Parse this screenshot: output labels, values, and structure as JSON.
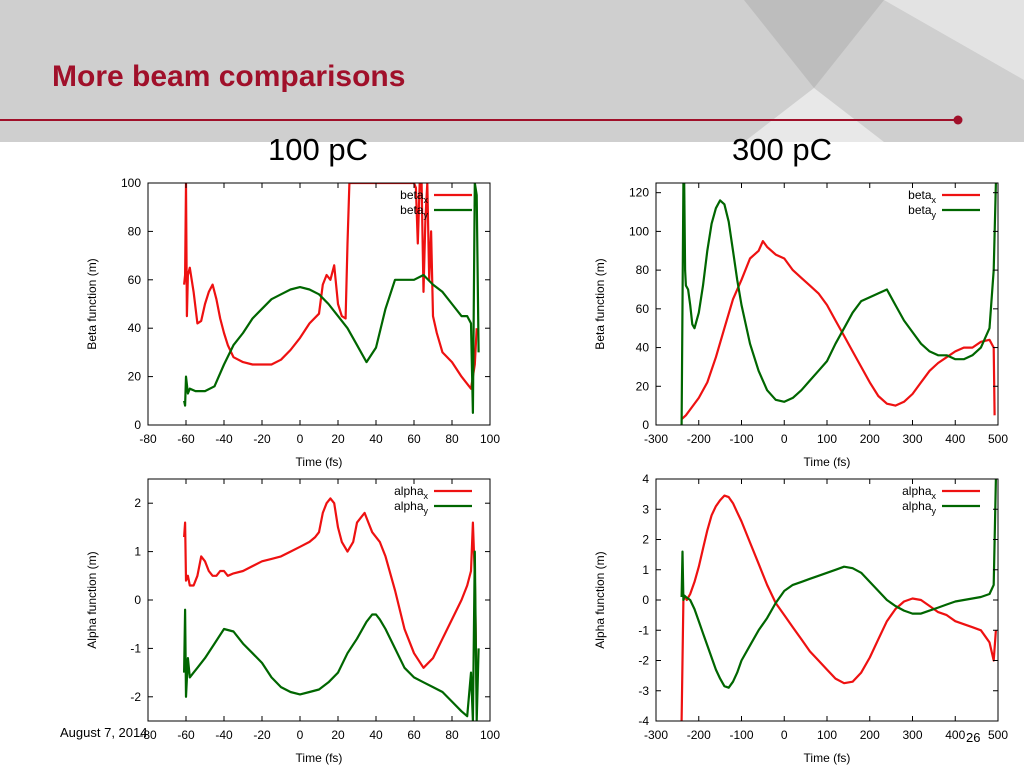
{
  "slide": {
    "title": "More beam comparisons",
    "column_titles": [
      "100 pC",
      "300 pC"
    ],
    "footer_date": "August 7, 2014",
    "page_number": "26"
  },
  "colors": {
    "title": "#a0102a",
    "header_band": "#cfcfcf",
    "series_x": "#ee1111",
    "series_y": "#006600"
  },
  "chart_data": [
    {
      "type": "line",
      "ylabel": "Beta function (m)",
      "xlabel": "Time (fs)",
      "xlim": [
        -80,
        100
      ],
      "ylim": [
        0,
        100
      ],
      "xticks": [
        -80,
        -60,
        -40,
        -20,
        0,
        20,
        40,
        60,
        80,
        100
      ],
      "yticks": [
        0,
        20,
        40,
        60,
        80,
        100
      ],
      "legend_position": "top-right",
      "series": [
        {
          "name": "beta",
          "sub": "x",
          "color": "#ee1111",
          "x": [
            -61,
            -60.5,
            -60,
            -59.5,
            -59,
            -58,
            -56,
            -54,
            -52,
            -50,
            -48,
            -46,
            -44,
            -42,
            -40,
            -38,
            -35,
            -30,
            -25,
            -20,
            -15,
            -10,
            -5,
            0,
            5,
            10,
            12,
            14,
            16,
            18,
            20,
            22,
            24,
            25,
            26,
            27,
            28,
            29,
            30,
            35,
            40,
            45,
            50,
            55,
            60,
            61,
            62,
            63,
            64,
            65,
            66,
            67,
            68,
            69,
            70,
            72,
            75,
            80,
            85,
            90,
            92,
            93
          ],
          "y": [
            58,
            62,
            100,
            45,
            62,
            65,
            55,
            42,
            43,
            50,
            55,
            58,
            52,
            44,
            38,
            33,
            28,
            26,
            25,
            25,
            25,
            27,
            31,
            36,
            42,
            46,
            58,
            62,
            60,
            66,
            50,
            45,
            44,
            75,
            100,
            100,
            100,
            100,
            100,
            100,
            100,
            100,
            100,
            100,
            100,
            98,
            75,
            100,
            100,
            55,
            85,
            100,
            60,
            80,
            45,
            38,
            30,
            26,
            20,
            15,
            25,
            40
          ]
        },
        {
          "name": "beta",
          "sub": "y",
          "color": "#006600",
          "x": [
            -61,
            -60.5,
            -60,
            -59,
            -58,
            -55,
            -50,
            -45,
            -40,
            -35,
            -30,
            -25,
            -20,
            -15,
            -10,
            -5,
            0,
            5,
            10,
            15,
            20,
            25,
            30,
            35,
            40,
            45,
            50,
            55,
            60,
            65,
            70,
            75,
            80,
            85,
            88,
            90,
            91,
            92,
            93,
            94
          ],
          "y": [
            10,
            8,
            20,
            13,
            15,
            14,
            14,
            16,
            25,
            33,
            38,
            44,
            48,
            52,
            54,
            56,
            57,
            56,
            54,
            50,
            45,
            40,
            33,
            26,
            32,
            48,
            60,
            60,
            60,
            62,
            58,
            55,
            50,
            45,
            45,
            42,
            5,
            100,
            95,
            30
          ]
        }
      ]
    },
    {
      "type": "line",
      "ylabel": "Beta function (m)",
      "xlabel": "Time (fs)",
      "xlim": [
        -300,
        500
      ],
      "ylim": [
        0,
        125
      ],
      "xticks": [
        -300,
        -200,
        -100,
        0,
        100,
        200,
        300,
        400,
        500
      ],
      "yticks": [
        0,
        20,
        40,
        60,
        80,
        100,
        120
      ],
      "legend_position": "top-right",
      "series": [
        {
          "name": "beta",
          "sub": "x",
          "color": "#ee1111",
          "x": [
            -240,
            -230,
            -220,
            -200,
            -180,
            -160,
            -140,
            -120,
            -100,
            -80,
            -60,
            -50,
            -40,
            -20,
            0,
            20,
            40,
            60,
            80,
            100,
            120,
            140,
            160,
            180,
            200,
            220,
            240,
            260,
            280,
            300,
            320,
            340,
            360,
            380,
            400,
            420,
            440,
            460,
            480,
            490,
            492
          ],
          "y": [
            3,
            5,
            8,
            14,
            22,
            35,
            50,
            65,
            75,
            86,
            90,
            95,
            92,
            88,
            86,
            80,
            76,
            72,
            68,
            62,
            54,
            46,
            38,
            30,
            22,
            15,
            11,
            10,
            12,
            16,
            22,
            28,
            32,
            35,
            38,
            40,
            40,
            43,
            44,
            40,
            5
          ]
        },
        {
          "name": "beta",
          "sub": "y",
          "color": "#006600",
          "x": [
            -240,
            -236,
            -234,
            -232,
            -230,
            -225,
            -220,
            -215,
            -210,
            -200,
            -190,
            -180,
            -170,
            -160,
            -150,
            -140,
            -130,
            -120,
            -110,
            -100,
            -80,
            -60,
            -40,
            -20,
            0,
            20,
            40,
            60,
            80,
            100,
            120,
            140,
            160,
            180,
            200,
            220,
            240,
            260,
            280,
            300,
            320,
            340,
            360,
            380,
            400,
            420,
            440,
            460,
            480,
            490,
            495
          ],
          "y": [
            0,
            125,
            125,
            80,
            72,
            70,
            62,
            52,
            50,
            58,
            72,
            90,
            104,
            112,
            116,
            114,
            105,
            90,
            75,
            62,
            42,
            28,
            18,
            13,
            12,
            14,
            18,
            23,
            28,
            33,
            42,
            50,
            58,
            64,
            66,
            68,
            70,
            62,
            54,
            48,
            42,
            38,
            36,
            36,
            34,
            34,
            36,
            40,
            50,
            80,
            125
          ]
        }
      ]
    },
    {
      "type": "line",
      "ylabel": "Alpha function (m)",
      "xlabel": "Time (fs)",
      "xlim": [
        -80,
        100
      ],
      "ylim": [
        -2.5,
        2.5
      ],
      "xticks": [
        -80,
        -60,
        -40,
        -20,
        0,
        20,
        40,
        60,
        80,
        100
      ],
      "yticks": [
        -2,
        -1,
        0,
        1,
        2
      ],
      "legend_position": "top-right",
      "series": [
        {
          "name": "alpha",
          "sub": "x",
          "color": "#ee1111",
          "x": [
            -61,
            -60.5,
            -60,
            -59,
            -58,
            -56,
            -54,
            -52,
            -50,
            -48,
            -46,
            -44,
            -42,
            -40,
            -38,
            -35,
            -30,
            -25,
            -20,
            -15,
            -10,
            -5,
            0,
            5,
            8,
            10,
            12,
            14,
            16,
            18,
            20,
            22,
            25,
            28,
            30,
            32,
            34,
            36,
            38,
            40,
            42,
            45,
            50,
            55,
            60,
            65,
            70,
            75,
            80,
            85,
            88,
            90,
            91,
            92,
            93
          ],
          "y": [
            1.3,
            1.6,
            0.4,
            0.5,
            0.3,
            0.3,
            0.5,
            0.9,
            0.8,
            0.6,
            0.5,
            0.5,
            0.6,
            0.6,
            0.5,
            0.55,
            0.6,
            0.7,
            0.8,
            0.85,
            0.9,
            1.0,
            1.1,
            1.2,
            1.3,
            1.4,
            1.8,
            2.0,
            2.1,
            2.0,
            1.5,
            1.2,
            1.0,
            1.2,
            1.6,
            1.7,
            1.8,
            1.6,
            1.4,
            1.3,
            1.2,
            0.9,
            0.2,
            -0.6,
            -1.1,
            -1.4,
            -1.2,
            -0.8,
            -0.4,
            0.0,
            0.3,
            0.6,
            1.6,
            0.5,
            -2.0
          ]
        },
        {
          "name": "alpha",
          "sub": "y",
          "color": "#006600",
          "x": [
            -61,
            -60.5,
            -60,
            -59,
            -58,
            -56,
            -54,
            -52,
            -50,
            -45,
            -40,
            -35,
            -30,
            -25,
            -20,
            -15,
            -10,
            -5,
            0,
            5,
            10,
            15,
            20,
            25,
            30,
            35,
            38,
            40,
            42,
            45,
            50,
            55,
            60,
            65,
            70,
            75,
            80,
            85,
            88,
            90,
            91,
            92,
            93,
            94
          ],
          "y": [
            -1.5,
            -0.2,
            -2.0,
            -1.2,
            -1.6,
            -1.5,
            -1.4,
            -1.3,
            -1.2,
            -0.9,
            -0.6,
            -0.65,
            -0.9,
            -1.1,
            -1.3,
            -1.6,
            -1.8,
            -1.9,
            -1.95,
            -1.9,
            -1.85,
            -1.7,
            -1.5,
            -1.1,
            -0.8,
            -0.45,
            -0.3,
            -0.3,
            -0.4,
            -0.6,
            -1.0,
            -1.4,
            -1.6,
            -1.7,
            -1.8,
            -1.9,
            -2.1,
            -2.3,
            -2.4,
            -1.5,
            -2.5,
            1.0,
            -2.5,
            -1.0
          ]
        }
      ]
    },
    {
      "type": "line",
      "ylabel": "Alpha function (m)",
      "xlabel": "Time (fs)",
      "xlim": [
        -300,
        500
      ],
      "ylim": [
        -4,
        4
      ],
      "xticks": [
        -300,
        -200,
        -100,
        0,
        100,
        200,
        300,
        400,
        500
      ],
      "yticks": [
        -4,
        -3,
        -2,
        -1,
        0,
        1,
        2,
        3,
        4
      ],
      "legend_position": "top-right",
      "series": [
        {
          "name": "alpha",
          "sub": "x",
          "color": "#ee1111",
          "x": [
            -240,
            -238,
            -236,
            -232,
            -228,
            -220,
            -210,
            -200,
            -190,
            -180,
            -170,
            -160,
            -150,
            -140,
            -130,
            -120,
            -110,
            -100,
            -80,
            -60,
            -40,
            -20,
            0,
            20,
            40,
            60,
            80,
            100,
            120,
            140,
            160,
            180,
            200,
            220,
            240,
            260,
            280,
            300,
            320,
            340,
            360,
            380,
            400,
            420,
            440,
            460,
            470,
            480,
            490,
            495
          ],
          "y": [
            -4,
            -2,
            0.0,
            0.1,
            0.0,
            0.2,
            0.6,
            1.1,
            1.7,
            2.3,
            2.8,
            3.1,
            3.3,
            3.45,
            3.4,
            3.2,
            2.9,
            2.6,
            1.9,
            1.2,
            0.5,
            -0.1,
            -0.5,
            -0.9,
            -1.3,
            -1.7,
            -2.0,
            -2.3,
            -2.6,
            -2.75,
            -2.7,
            -2.4,
            -1.9,
            -1.3,
            -0.7,
            -0.3,
            -0.05,
            0.05,
            0.0,
            -0.2,
            -0.4,
            -0.5,
            -0.7,
            -0.8,
            -0.9,
            -1.0,
            -1.2,
            -1.4,
            -2.0,
            -1.0
          ]
        },
        {
          "name": "alpha",
          "sub": "y",
          "color": "#006600",
          "x": [
            -240,
            -238,
            -236,
            -234,
            -230,
            -220,
            -210,
            -200,
            -190,
            -180,
            -170,
            -160,
            -150,
            -140,
            -130,
            -120,
            -110,
            -100,
            -80,
            -60,
            -40,
            -20,
            0,
            20,
            40,
            60,
            80,
            100,
            120,
            140,
            160,
            180,
            200,
            220,
            240,
            260,
            280,
            300,
            320,
            340,
            360,
            380,
            400,
            420,
            440,
            460,
            480,
            490,
            495
          ],
          "y": [
            0.1,
            1.6,
            0.0,
            0.15,
            0.1,
            0.0,
            -0.3,
            -0.7,
            -1.1,
            -1.5,
            -1.9,
            -2.3,
            -2.6,
            -2.85,
            -2.9,
            -2.7,
            -2.4,
            -2.0,
            -1.5,
            -1.0,
            -0.6,
            -0.1,
            0.3,
            0.5,
            0.6,
            0.7,
            0.8,
            0.9,
            1.0,
            1.1,
            1.05,
            0.9,
            0.6,
            0.3,
            0.0,
            -0.2,
            -0.35,
            -0.45,
            -0.45,
            -0.35,
            -0.25,
            -0.15,
            -0.05,
            0.0,
            0.05,
            0.1,
            0.2,
            0.5,
            4.0
          ]
        }
      ]
    }
  ]
}
